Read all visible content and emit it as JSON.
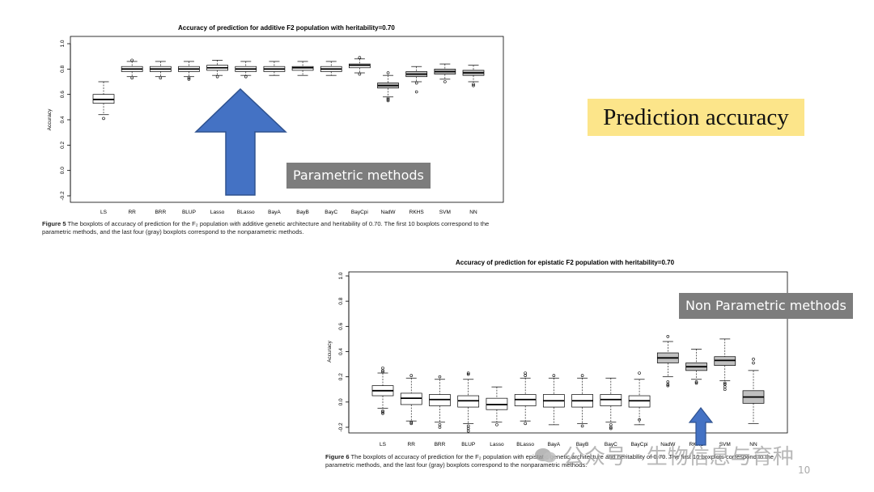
{
  "slide": {
    "heading": "Prediction accuracy",
    "parametric_label": "Parametric methods",
    "nonparametric_label": "Non Parametric methods",
    "page_number": "10",
    "watermark": "公众号 · 生物信息与育种",
    "colors": {
      "highlight": "#fce58a",
      "arrow_fill": "#4472c4",
      "arrow_stroke": "#2f528f",
      "label_box": "#7d7d7d",
      "box_gray": "#c0c0c0"
    }
  },
  "figure5": {
    "caption_label": "Figure 5",
    "caption_text": " The boxplots of accuracy of prediction for the F₂ population with additive genetic architecture and heritability of 0.70. The first 10 boxplots correspond to the parametric methods, and the last four (gray) boxplots correspond to the nonparametric methods."
  },
  "figure6": {
    "caption_label": "Figure 6",
    "caption_text": " The boxplots of accuracy of prediction for the F₂ population with epistatic genetic architecture and heritability of 0.70. The first 10 boxplots correspond to the parametric methods, and the last four (gray) boxplots correspond to the nonparametric methods."
  },
  "chart_data": [
    {
      "type": "boxplot",
      "title": "Accuracy of prediction for additive F2 population with heritability=0.70",
      "ylabel": "Accuracy",
      "ylim": [
        -0.2,
        1.0
      ],
      "yticks": [
        -0.2,
        0.0,
        0.2,
        0.4,
        0.6,
        0.8,
        1.0
      ],
      "yticklabels": [
        "-0.2",
        "0.0",
        "0.2",
        "0.4",
        "0.6",
        "0.8",
        "1.0"
      ],
      "grid": false,
      "categories": [
        "LS",
        "RR",
        "BRR",
        "BLUP",
        "Lasso",
        "BLasso",
        "BayA",
        "BayB",
        "BayC",
        "BayCpi",
        "NadW",
        "RKHS",
        "SVM",
        "NN"
      ],
      "series": [
        {
          "q1": 0.53,
          "median": 0.56,
          "q3": 0.6,
          "whisker_low": 0.44,
          "whisker_high": 0.7,
          "outliers": [
            0.41
          ]
        },
        {
          "q1": 0.78,
          "median": 0.8,
          "q3": 0.82,
          "whisker_low": 0.74,
          "whisker_high": 0.86,
          "outliers": [
            0.73,
            0.87
          ]
        },
        {
          "q1": 0.78,
          "median": 0.8,
          "q3": 0.82,
          "whisker_low": 0.74,
          "whisker_high": 0.86,
          "outliers": [
            0.73
          ]
        },
        {
          "q1": 0.78,
          "median": 0.8,
          "q3": 0.82,
          "whisker_low": 0.74,
          "whisker_high": 0.86,
          "outliers": [
            0.72,
            0.73
          ]
        },
        {
          "q1": 0.79,
          "median": 0.81,
          "q3": 0.83,
          "whisker_low": 0.75,
          "whisker_high": 0.87,
          "outliers": [
            0.74
          ]
        },
        {
          "q1": 0.78,
          "median": 0.8,
          "q3": 0.82,
          "whisker_low": 0.75,
          "whisker_high": 0.86,
          "outliers": [
            0.74
          ]
        },
        {
          "q1": 0.78,
          "median": 0.8,
          "q3": 0.82,
          "whisker_low": 0.75,
          "whisker_high": 0.86,
          "outliers": []
        },
        {
          "q1": 0.79,
          "median": 0.81,
          "q3": 0.82,
          "whisker_low": 0.75,
          "whisker_high": 0.86,
          "outliers": []
        },
        {
          "q1": 0.78,
          "median": 0.8,
          "q3": 0.82,
          "whisker_low": 0.75,
          "whisker_high": 0.86,
          "outliers": []
        },
        {
          "q1": 0.81,
          "median": 0.83,
          "q3": 0.84,
          "whisker_low": 0.77,
          "whisker_high": 0.88,
          "outliers": [
            0.76,
            0.89
          ]
        },
        {
          "q1": 0.65,
          "median": 0.67,
          "q3": 0.69,
          "whisker_low": 0.58,
          "whisker_high": 0.75,
          "outliers": [
            0.55,
            0.56,
            0.57,
            0.77
          ]
        },
        {
          "q1": 0.74,
          "median": 0.76,
          "q3": 0.78,
          "whisker_low": 0.7,
          "whisker_high": 0.82,
          "outliers": [
            0.62,
            0.69
          ]
        },
        {
          "q1": 0.76,
          "median": 0.78,
          "q3": 0.8,
          "whisker_low": 0.72,
          "whisker_high": 0.84,
          "outliers": [
            0.7
          ]
        },
        {
          "q1": 0.75,
          "median": 0.77,
          "q3": 0.79,
          "whisker_low": 0.7,
          "whisker_high": 0.83,
          "outliers": [
            0.67,
            0.68
          ]
        }
      ],
      "box_colors": [
        "#ffffff",
        "#ffffff",
        "#ffffff",
        "#ffffff",
        "#ffffff",
        "#ffffff",
        "#ffffff",
        "#ffffff",
        "#ffffff",
        "#ffffff",
        "#c0c0c0",
        "#c0c0c0",
        "#c0c0c0",
        "#c0c0c0"
      ]
    },
    {
      "type": "boxplot",
      "title": "Accuracy of prediction for epistatic F2 population with heritability=0.70",
      "ylabel": "Accuracy",
      "ylim": [
        -0.2,
        1.0
      ],
      "yticks": [
        -0.2,
        0.0,
        0.2,
        0.4,
        0.6,
        0.8,
        1.0
      ],
      "yticklabels": [
        "-0.2",
        "0.0",
        "0.2",
        "0.4",
        "0.6",
        "0.8",
        "1.0"
      ],
      "grid": false,
      "categories": [
        "LS",
        "RR",
        "BRR",
        "BLUP",
        "Lasso",
        "BLasso",
        "BayA",
        "BayB",
        "BayC",
        "BayCpi",
        "NadW",
        "RKHS",
        "SVM",
        "NN"
      ],
      "series": [
        {
          "q1": 0.05,
          "median": 0.09,
          "q3": 0.13,
          "whisker_low": -0.05,
          "whisker_high": 0.23,
          "outliers": [
            -0.07,
            -0.08,
            -0.09,
            0.24,
            0.25,
            0.27
          ]
        },
        {
          "q1": -0.02,
          "median": 0.03,
          "q3": 0.07,
          "whisker_low": -0.15,
          "whisker_high": 0.19,
          "outliers": [
            -0.16,
            -0.17,
            0.21
          ]
        },
        {
          "q1": -0.03,
          "median": 0.02,
          "q3": 0.06,
          "whisker_low": -0.16,
          "whisker_high": 0.18,
          "outliers": [
            -0.18,
            -0.2,
            0.2
          ]
        },
        {
          "q1": -0.04,
          "median": 0.01,
          "q3": 0.05,
          "whisker_low": -0.17,
          "whisker_high": 0.18,
          "outliers": [
            -0.19,
            -0.21,
            -0.23,
            0.22,
            0.23
          ]
        },
        {
          "q1": -0.06,
          "median": -0.02,
          "q3": 0.03,
          "whisker_low": -0.16,
          "whisker_high": 0.12,
          "outliers": [
            -0.18
          ]
        },
        {
          "q1": -0.03,
          "median": 0.02,
          "q3": 0.06,
          "whisker_low": -0.15,
          "whisker_high": 0.19,
          "outliers": [
            -0.17,
            0.21,
            0.23
          ]
        },
        {
          "q1": -0.04,
          "median": 0.01,
          "q3": 0.06,
          "whisker_low": -0.18,
          "whisker_high": 0.19,
          "outliers": [
            0.21
          ]
        },
        {
          "q1": -0.04,
          "median": 0.01,
          "q3": 0.06,
          "whisker_low": -0.17,
          "whisker_high": 0.19,
          "outliers": [
            -0.19,
            0.21
          ]
        },
        {
          "q1": -0.03,
          "median": 0.02,
          "q3": 0.06,
          "whisker_low": -0.16,
          "whisker_high": 0.19,
          "outliers": [
            -0.18,
            -0.2,
            -0.21
          ]
        },
        {
          "q1": -0.04,
          "median": 0.01,
          "q3": 0.05,
          "whisker_low": -0.18,
          "whisker_high": 0.18,
          "outliers": [
            -0.14,
            0.23
          ]
        },
        {
          "q1": 0.31,
          "median": 0.35,
          "q3": 0.39,
          "whisker_low": 0.2,
          "whisker_high": 0.48,
          "outliers": [
            0.13,
            0.14,
            0.16,
            0.52
          ]
        },
        {
          "q1": 0.25,
          "median": 0.28,
          "q3": 0.31,
          "whisker_low": 0.18,
          "whisker_high": 0.42,
          "outliers": [
            0.15,
            0.16
          ]
        },
        {
          "q1": 0.29,
          "median": 0.33,
          "q3": 0.36,
          "whisker_low": 0.17,
          "whisker_high": 0.5,
          "outliers": [
            0.1,
            0.12,
            0.14,
            0.15
          ]
        },
        {
          "q1": -0.01,
          "median": 0.04,
          "q3": 0.09,
          "whisker_low": -0.17,
          "whisker_high": 0.25,
          "outliers": [
            0.31,
            0.34
          ]
        }
      ],
      "box_colors": [
        "#ffffff",
        "#ffffff",
        "#ffffff",
        "#ffffff",
        "#ffffff",
        "#ffffff",
        "#ffffff",
        "#ffffff",
        "#ffffff",
        "#ffffff",
        "#c0c0c0",
        "#c0c0c0",
        "#c0c0c0",
        "#c0c0c0"
      ]
    }
  ]
}
